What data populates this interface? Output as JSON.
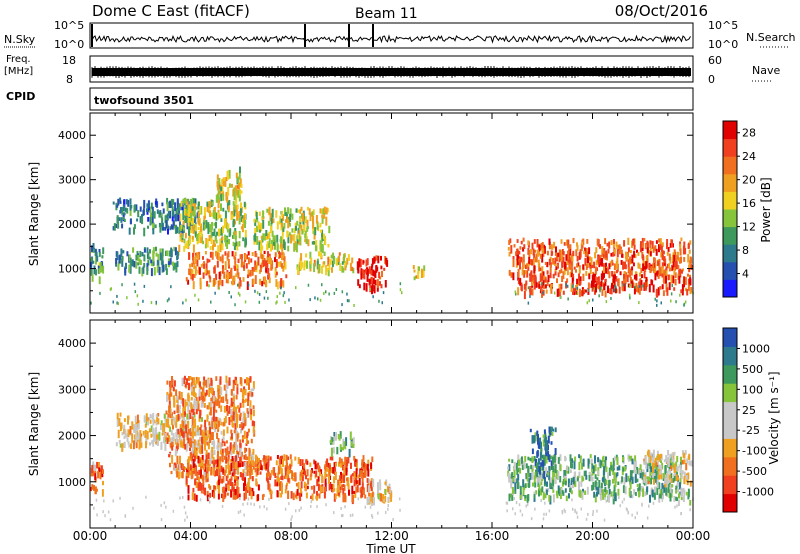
{
  "header": {
    "title": "Dome C East (fitACF)",
    "beam": "Beam 11",
    "date": "08/Oct/2016"
  },
  "panels": {
    "nsky": {
      "label": "N.Sky",
      "ticks": [
        "10^5",
        "10^0"
      ],
      "right_label": "N.Search",
      "right_ticks": [
        "10^5",
        "10^0"
      ]
    },
    "freq": {
      "label_line1": "Freq.",
      "label_line2": "[MHz]",
      "ticks": [
        "18",
        "8"
      ],
      "right_label": "Nave",
      "right_ticks": [
        "60",
        "0"
      ]
    },
    "cpid": {
      "label": "CPID",
      "value": "twofsound  3501"
    }
  },
  "chart_data": [
    {
      "type": "heatmap",
      "quantity": "Power",
      "ylabel": "Slant Range [km]",
      "yticks": [
        "1000",
        "2000",
        "3000",
        "4000"
      ],
      "ylim": [
        0,
        4500
      ],
      "xlim": [
        0,
        24
      ],
      "colorbar": {
        "label": "Power [dB]",
        "ticks": [
          "4",
          "8",
          "12",
          "16",
          "20",
          "24",
          "28"
        ],
        "range": [
          0,
          30
        ],
        "colors": [
          "#1a1aff",
          "#2450b0",
          "#2c7a8c",
          "#3d9a5c",
          "#86c43c",
          "#f0d020",
          "#f0a020",
          "#f07020",
          "#f04020",
          "#e00000"
        ]
      },
      "regions": [
        {
          "t0": 0.9,
          "t1": 4.3,
          "r0": 1900,
          "r1": 2600,
          "level": 0.25
        },
        {
          "t0": 0.0,
          "t1": 0.5,
          "r0": 800,
          "r1": 1600,
          "level": 0.35
        },
        {
          "t0": 1.0,
          "t1": 3.5,
          "r0": 1000,
          "r1": 1500,
          "level": 0.3
        },
        {
          "t0": 3.5,
          "t1": 6.2,
          "r0": 1500,
          "r1": 2600,
          "level": 0.5
        },
        {
          "t0": 5.0,
          "t1": 6.0,
          "r0": 2600,
          "r1": 3300,
          "level": 0.55
        },
        {
          "t0": 3.8,
          "t1": 7.8,
          "r0": 700,
          "r1": 1400,
          "level": 0.75
        },
        {
          "t0": 6.5,
          "t1": 9.5,
          "r0": 1500,
          "r1": 2400,
          "level": 0.5
        },
        {
          "t0": 8.2,
          "t1": 10.5,
          "r0": 1000,
          "r1": 1400,
          "level": 0.55
        },
        {
          "t0": 10.6,
          "t1": 11.8,
          "r0": 600,
          "r1": 1300,
          "level": 0.95
        },
        {
          "t0": 12.8,
          "t1": 13.3,
          "r0": 800,
          "r1": 1100,
          "level": 0.6
        },
        {
          "t0": 16.6,
          "t1": 23.9,
          "r0": 900,
          "r1": 1700,
          "level": 0.8
        },
        {
          "t0": 17.0,
          "t1": 23.9,
          "r0": 500,
          "r1": 900,
          "level": 0.85
        }
      ]
    },
    {
      "type": "heatmap",
      "quantity": "Velocity",
      "ylabel": "Slant Range [km]",
      "yticks": [
        "1000",
        "2000",
        "3000",
        "4000"
      ],
      "xticks": [
        "00:00",
        "04:00",
        "08:00",
        "12:00",
        "16:00",
        "20:00",
        "00:00"
      ],
      "xlabel": "Time UT",
      "ylim": [
        0,
        4500
      ],
      "xlim": [
        0,
        24
      ],
      "colorbar": {
        "label": "Velocity  [m s⁻¹]",
        "ticks": [
          "1000",
          "500",
          "100",
          "25",
          "-25",
          "-100",
          "-500",
          "-1000"
        ],
        "range": [
          -1000,
          1000
        ],
        "colors": [
          "#e00000",
          "#f04020",
          "#f07020",
          "#f0a020",
          "#c8c8c8",
          "#c8c8c8",
          "#86c43c",
          "#3d9a5c",
          "#2c7a8c",
          "#2450b0"
        ]
      },
      "regions": [
        {
          "t0": 1.0,
          "t1": 5.0,
          "r0": 1800,
          "r1": 2500,
          "level": 0.45
        },
        {
          "t0": 0.0,
          "t1": 0.5,
          "r0": 800,
          "r1": 1500,
          "level": 0.25
        },
        {
          "t0": 3.0,
          "t1": 6.5,
          "r0": 1200,
          "r1": 3300,
          "level": 0.3
        },
        {
          "t0": 3.8,
          "t1": 11.2,
          "r0": 700,
          "r1": 1600,
          "level": 0.22
        },
        {
          "t0": 9.5,
          "t1": 10.5,
          "r0": 1700,
          "r1": 2100,
          "level": 0.7
        },
        {
          "t0": 11.0,
          "t1": 12.0,
          "r0": 600,
          "r1": 1100,
          "level": 0.45
        },
        {
          "t0": 16.6,
          "t1": 23.5,
          "r0": 700,
          "r1": 1600,
          "level": 0.68
        },
        {
          "t0": 17.5,
          "t1": 18.5,
          "r0": 1200,
          "r1": 2200,
          "level": 0.85
        },
        {
          "t0": 22.0,
          "t1": 23.9,
          "r0": 1000,
          "r1": 1700,
          "level": 0.45
        },
        {
          "t0": 23.2,
          "t1": 23.9,
          "r0": 600,
          "r1": 900,
          "level": 0.6
        }
      ]
    }
  ]
}
